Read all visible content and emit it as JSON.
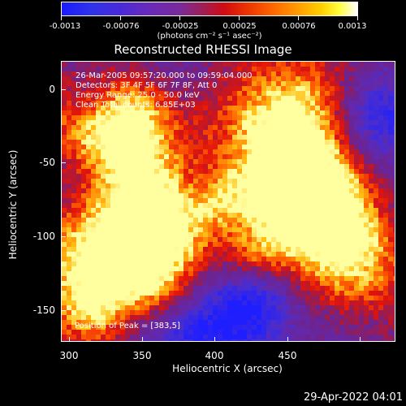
{
  "colorbar": {
    "tick_labels": [
      "-0.0013",
      "-0.00076",
      "-0.00025",
      "0.00025",
      "0.00076",
      "0.0013"
    ],
    "units": "(photons cm⁻² s⁻¹ asec⁻²)"
  },
  "title": "Reconstructed RHESSI Image",
  "annotations": {
    "line1": "26-Mar-2005 09:57:20.000 to 09:59:04.000",
    "line2": "Detectors: 3F 4F 5F 6F 7F 8F, Att 0",
    "line3": "Energy Range: 25.0 - 50.0 keV",
    "line4": "Clean     Total counts: 6.85E+03"
  },
  "peak_text": "Position of Peak = [383,5]",
  "axes": {
    "x_title": "Heliocentric X (arcsec)",
    "y_title": "Heliocentric Y (arcsec)",
    "x_ticks": [
      "300",
      "350",
      "400",
      "450"
    ],
    "y_ticks": [
      "0",
      "-50",
      "-100",
      "-150"
    ]
  },
  "datestamp": "29-Apr-2022 04:01"
}
